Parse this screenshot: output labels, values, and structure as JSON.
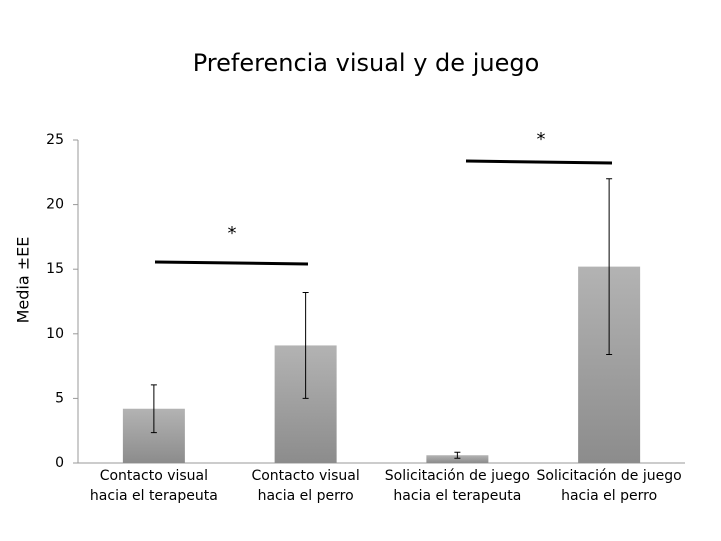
{
  "chart_data": {
    "type": "bar",
    "title": "Preferencia visual y de juego",
    "y_label": "Media ±EE",
    "categories": [
      "Contacto visual\nhacia el terapeuta",
      "Contacto visual\nhacia el perro",
      "Solicitación de juego\nhacia el terapeuta",
      "Solicitación de juego\nhacia el perro"
    ],
    "values": [
      4.2,
      9.1,
      0.6,
      15.2
    ],
    "errors": [
      1.85,
      4.1,
      0.23,
      6.8
    ],
    "ylim": [
      0,
      25
    ],
    "yticks": [
      0,
      5,
      10,
      15,
      20,
      25
    ],
    "grid": false,
    "annotations": [
      "*",
      "*"
    ]
  }
}
